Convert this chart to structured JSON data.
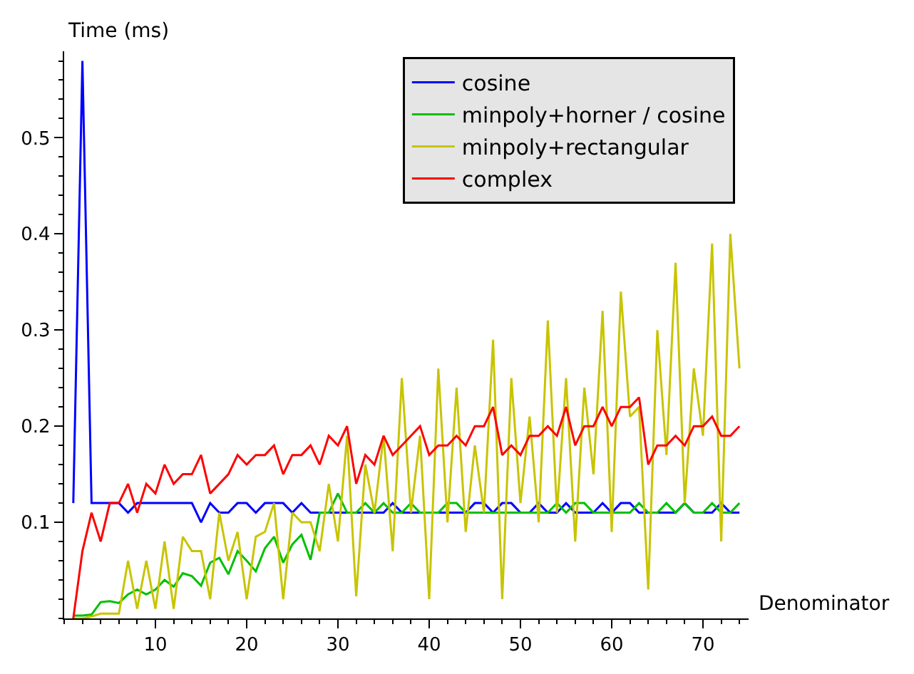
{
  "chart_data": {
    "type": "line",
    "xlabel": "Denominator",
    "ylabel": "Time (ms)",
    "x": [
      1,
      2,
      3,
      4,
      5,
      6,
      7,
      8,
      9,
      10,
      11,
      12,
      13,
      14,
      15,
      16,
      17,
      18,
      19,
      20,
      21,
      22,
      23,
      24,
      25,
      26,
      27,
      28,
      29,
      30,
      31,
      32,
      33,
      34,
      35,
      36,
      37,
      38,
      39,
      40,
      41,
      42,
      43,
      44,
      45,
      46,
      47,
      48,
      49,
      50,
      51,
      52,
      53,
      54,
      55,
      56,
      57,
      58,
      59,
      60,
      61,
      62,
      63,
      64,
      65,
      66,
      67,
      68,
      69,
      70,
      71,
      72,
      73,
      74
    ],
    "series": [
      {
        "name": "cosine",
        "color": "#0000ff",
        "values": [
          0.12,
          0.58,
          0.12,
          0.12,
          0.12,
          0.12,
          0.11,
          0.12,
          0.12,
          0.12,
          0.12,
          0.12,
          0.12,
          0.12,
          0.1,
          0.12,
          0.11,
          0.11,
          0.12,
          0.12,
          0.11,
          0.12,
          0.12,
          0.12,
          0.11,
          0.12,
          0.11,
          0.11,
          0.11,
          0.11,
          0.11,
          0.11,
          0.11,
          0.11,
          0.11,
          0.12,
          0.11,
          0.11,
          0.11,
          0.11,
          0.11,
          0.11,
          0.11,
          0.11,
          0.12,
          0.12,
          0.11,
          0.12,
          0.12,
          0.11,
          0.11,
          0.12,
          0.11,
          0.11,
          0.12,
          0.11,
          0.11,
          0.11,
          0.12,
          0.11,
          0.12,
          0.12,
          0.11,
          0.11,
          0.11,
          0.11,
          0.11,
          0.12,
          0.11,
          0.11,
          0.11,
          0.12,
          0.11,
          0.11
        ]
      },
      {
        "name": "minpoly+horner / cosine",
        "color": "#00c000",
        "values": [
          0.003,
          0.003,
          0.004,
          0.017,
          0.018,
          0.016,
          0.025,
          0.03,
          0.025,
          0.03,
          0.04,
          0.033,
          0.047,
          0.044,
          0.034,
          0.058,
          0.063,
          0.046,
          0.07,
          0.06,
          0.049,
          0.073,
          0.085,
          0.058,
          0.077,
          0.087,
          0.061,
          0.11,
          0.11,
          0.13,
          0.11,
          0.11,
          0.12,
          0.11,
          0.12,
          0.11,
          0.11,
          0.12,
          0.11,
          0.11,
          0.11,
          0.12,
          0.12,
          0.11,
          0.11,
          0.11,
          0.11,
          0.11,
          0.11,
          0.11,
          0.11,
          0.11,
          0.11,
          0.12,
          0.11,
          0.12,
          0.12,
          0.11,
          0.11,
          0.11,
          0.11,
          0.11,
          0.12,
          0.11,
          0.11,
          0.12,
          0.11,
          0.12,
          0.11,
          0.11,
          0.12,
          0.11,
          0.11,
          0.12
        ]
      },
      {
        "name": "minpoly+rectangular",
        "color": "#c8c400",
        "values": [
          0,
          0,
          0.002,
          0.005,
          0.005,
          0.005,
          0.06,
          0.01,
          0.06,
          0.01,
          0.08,
          0.01,
          0.085,
          0.07,
          0.07,
          0.02,
          0.11,
          0.06,
          0.09,
          0.02,
          0.085,
          0.09,
          0.12,
          0.02,
          0.11,
          0.1,
          0.1,
          0.07,
          0.14,
          0.08,
          0.19,
          0.023,
          0.16,
          0.11,
          0.19,
          0.07,
          0.25,
          0.11,
          0.19,
          0.02,
          0.26,
          0.1,
          0.24,
          0.09,
          0.18,
          0.11,
          0.29,
          0.02,
          0.25,
          0.12,
          0.21,
          0.1,
          0.31,
          0.11,
          0.25,
          0.08,
          0.24,
          0.15,
          0.32,
          0.09,
          0.34,
          0.21,
          0.22,
          0.03,
          0.3,
          0.17,
          0.37,
          0.12,
          0.26,
          0.19,
          0.39,
          0.08,
          0.4,
          0.26
        ]
      },
      {
        "name": "complex",
        "color": "#ff0000",
        "values": [
          0,
          0.07,
          0.11,
          0.08,
          0.12,
          0.12,
          0.14,
          0.11,
          0.14,
          0.13,
          0.16,
          0.14,
          0.15,
          0.15,
          0.17,
          0.13,
          0.14,
          0.15,
          0.17,
          0.16,
          0.17,
          0.17,
          0.18,
          0.15,
          0.17,
          0.17,
          0.18,
          0.16,
          0.19,
          0.18,
          0.2,
          0.14,
          0.17,
          0.16,
          0.19,
          0.17,
          0.18,
          0.19,
          0.2,
          0.17,
          0.18,
          0.18,
          0.19,
          0.18,
          0.2,
          0.2,
          0.22,
          0.17,
          0.18,
          0.17,
          0.19,
          0.19,
          0.2,
          0.19,
          0.22,
          0.18,
          0.2,
          0.2,
          0.22,
          0.2,
          0.22,
          0.22,
          0.23,
          0.16,
          0.18,
          0.18,
          0.19,
          0.18,
          0.2,
          0.2,
          0.21,
          0.19,
          0.19,
          0.2
        ]
      }
    ],
    "xlim": [
      0,
      75
    ],
    "xticks": [
      10,
      20,
      30,
      40,
      50,
      60,
      70
    ],
    "ylim": [
      0,
      0.59
    ],
    "yticks": [
      0.1,
      0.2,
      0.3,
      0.4,
      0.5
    ],
    "legend": "top right",
    "marker": "none",
    "line_style": "solid"
  }
}
